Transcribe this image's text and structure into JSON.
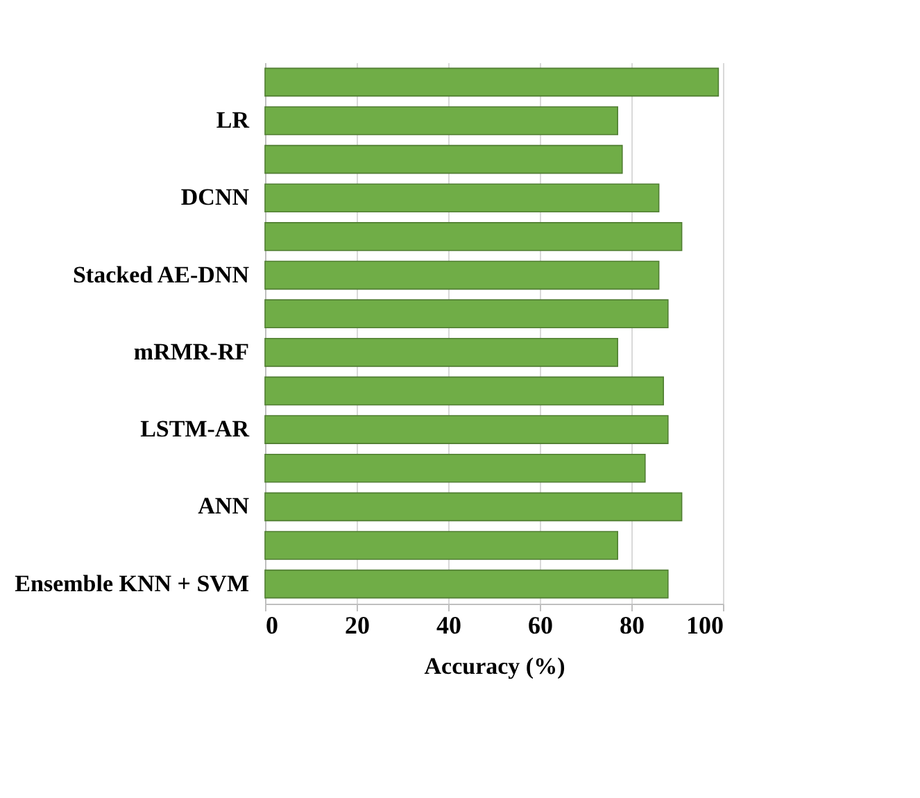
{
  "chart_data": {
    "type": "bar",
    "orientation": "horizontal",
    "xlabel": "Accuracy (%)",
    "categories": [
      null,
      "LR",
      null,
      "DCNN",
      null,
      "Stacked AE-DNN",
      null,
      "mRMR-RF",
      null,
      "LSTM-AR",
      null,
      "ANN",
      null,
      "Ensemble KNN + SVM"
    ],
    "values": [
      99,
      77,
      78,
      86,
      91,
      86,
      88,
      77,
      87,
      88,
      83,
      91,
      77,
      88
    ],
    "color": "#70ad47",
    "xlim": [
      0,
      100
    ],
    "xticks": [
      0,
      20,
      40,
      60,
      80,
      100
    ],
    "grid": "x"
  }
}
